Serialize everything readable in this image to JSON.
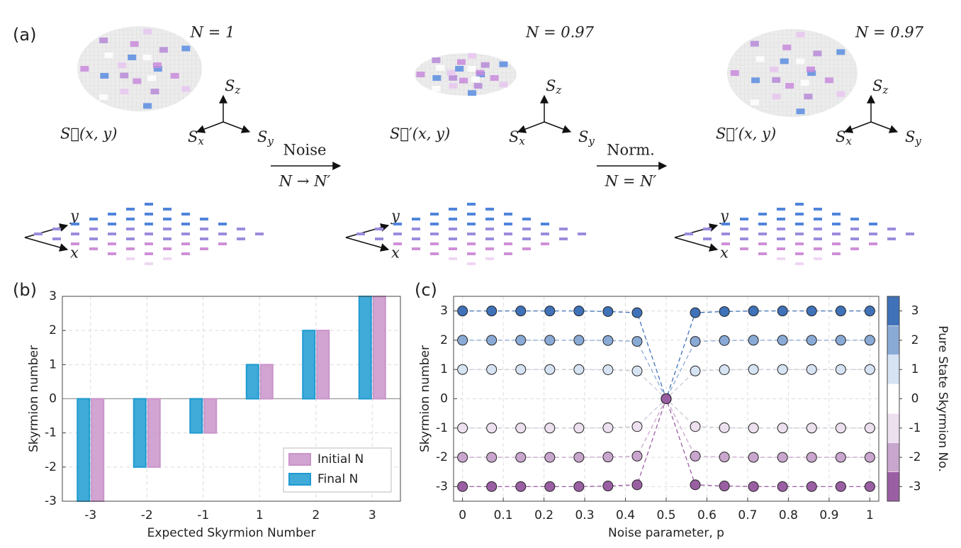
{
  "panel_a": {
    "label": "(a)",
    "states": [
      {
        "n_label": "N = 1",
        "field": "S⃗(x, y)"
      },
      {
        "n_label": "N = 0.97",
        "field": "S⃗′(x, y)"
      },
      {
        "n_label": "N = 0.97",
        "field": "S⃗′(x, y)"
      }
    ],
    "axes": [
      {
        "letter": "S",
        "sub": "z"
      },
      {
        "letter": "S",
        "sub": "x"
      },
      {
        "letter": "S",
        "sub": "y"
      }
    ],
    "plane_axes": [
      "y",
      "x"
    ],
    "steps": [
      {
        "top": "Noise",
        "bottom": "N → N′"
      },
      {
        "top": "Norm.",
        "bottom": "N = N′"
      }
    ]
  },
  "chart_data": [
    {
      "type": "bar",
      "panel": "(b)",
      "xlabel": "Expected Skyrmion Number",
      "ylabel": "Skyrmion number",
      "categories": [
        "-3",
        "-2",
        "-1",
        "1",
        "2",
        "3"
      ],
      "series": [
        {
          "name": "Final N",
          "color": "#1f9bd1",
          "values": [
            -3,
            -2,
            -1,
            1,
            2,
            3
          ]
        },
        {
          "name": "Initial N",
          "color": "#c994c9",
          "values": [
            -3,
            -2,
            -1,
            1,
            2,
            3
          ]
        }
      ],
      "ylim": [
        -3,
        3
      ],
      "yticks": [
        -3,
        -2,
        -1,
        0,
        1,
        2,
        3
      ],
      "grid": true,
      "legend": "lower right"
    },
    {
      "type": "line",
      "panel": "(c)",
      "xlabel": "Noise parameter, p",
      "ylabel": "Skyrmion number",
      "x": [
        0,
        0.0714,
        0.1429,
        0.2143,
        0.2857,
        0.3571,
        0.4286,
        0.5,
        0.5714,
        0.6429,
        0.7143,
        0.7857,
        0.8571,
        0.9286,
        1
      ],
      "series": [
        {
          "color": "#3f72b8",
          "values": [
            3,
            3,
            3,
            3,
            3,
            2.98,
            2.94,
            0,
            2.94,
            2.98,
            3,
            3,
            3,
            3,
            3
          ]
        },
        {
          "color": "#8aaad6",
          "values": [
            2,
            2,
            2,
            2,
            2,
            1.99,
            1.96,
            0,
            1.96,
            1.99,
            2,
            2,
            2,
            2,
            2
          ]
        },
        {
          "color": "#d6e3f3",
          "values": [
            1,
            1,
            1,
            1,
            1,
            0.99,
            0.95,
            0,
            0.95,
            0.99,
            1,
            1,
            1,
            1,
            1
          ]
        },
        {
          "color": "#ece0ee",
          "values": [
            -1,
            -1,
            -1,
            -1,
            -1,
            -0.99,
            -0.95,
            0,
            -0.95,
            -0.99,
            -1,
            -1,
            -1,
            -1,
            -1
          ]
        },
        {
          "color": "#c9a6cd",
          "values": [
            -2,
            -2,
            -2,
            -2,
            -2,
            -1.99,
            -1.96,
            0,
            -1.96,
            -1.99,
            -2,
            -2,
            -2,
            -2,
            -2
          ]
        },
        {
          "color": "#9a5fa3",
          "values": [
            -3,
            -3,
            -3,
            -3,
            -3,
            -2.98,
            -2.94,
            0,
            -2.94,
            -2.98,
            -3,
            -3,
            -3,
            -3,
            -3
          ]
        }
      ],
      "xlim": [
        -0.022,
        1.022
      ],
      "xticks": [
        0,
        0.1,
        0.2,
        0.3,
        0.4,
        0.5,
        0.6,
        0.7,
        0.8,
        0.9,
        1
      ],
      "ylim": [
        -3.5,
        3.5
      ],
      "yticks": [
        -3,
        -2,
        -1,
        0,
        1,
        2,
        3
      ],
      "grid": true,
      "colorbar": {
        "label": "Pure State Skyrmion No.",
        "ticks": [
          -3,
          -2,
          -1,
          0,
          1,
          2,
          3
        ],
        "colors": [
          "#9a5fa3",
          "#c9a6cd",
          "#ece0ee",
          "#ffffff",
          "#d6e3f3",
          "#8aaad6",
          "#3f72b8"
        ]
      }
    }
  ]
}
